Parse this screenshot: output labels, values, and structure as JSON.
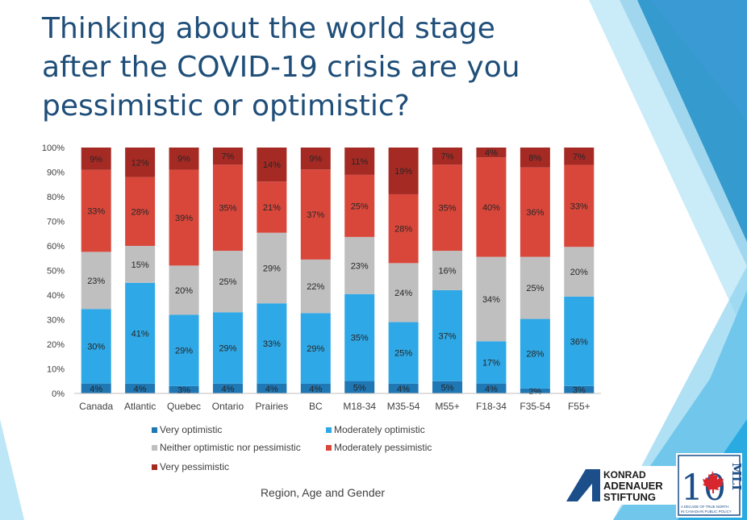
{
  "title_lines": [
    "Thinking about the world stage",
    "after the COVID-19 crisis are you",
    "pessimistic or optimistic?"
  ],
  "colors": {
    "title": "#1f4e79",
    "very_optimistic": "#1f77b4",
    "moderately_optimistic": "#2ea8e6",
    "neither": "#bfbfbf",
    "moderately_pessimistic": "#d9473b",
    "very_pessimistic": "#a52a24",
    "accent": "#29abe2"
  },
  "logos": {
    "kas": {
      "line1": "KONRAD",
      "line2": "ADENAUER",
      "line3": "STIFTUNG"
    },
    "mli": {
      "number": "10",
      "letters": "MLI",
      "tagline_1": "A DECADE OF TRUE NORTH",
      "tagline_2": "IN CANADIAN PUBLIC POLICY"
    }
  },
  "chart_data": {
    "type": "bar",
    "stacked": true,
    "percent": true,
    "categories": [
      "Canada",
      "Atlantic",
      "Quebec",
      "Ontario",
      "Prairies",
      "BC",
      "M18-34",
      "M35-54",
      "M55+",
      "F18-34",
      "F35-54",
      "F55+"
    ],
    "series": [
      {
        "name": "Very optimistic",
        "values": [
          4,
          4,
          3,
          4,
          4,
          4,
          5,
          4,
          5,
          4,
          2,
          3
        ],
        "labels": [
          "4%",
          "4%",
          "3%",
          "4%",
          "4%",
          "4%",
          "5%",
          "4%",
          "5%",
          "4%",
          "2%",
          "3%"
        ]
      },
      {
        "name": "Moderately optimistic",
        "values": [
          30,
          41,
          29,
          29,
          33,
          29,
          35,
          25,
          37,
          17,
          28,
          36
        ],
        "labels": [
          "30%",
          "41%",
          "29%",
          "29%",
          "33%",
          "29%",
          "35%",
          "25%",
          "37%",
          "17%",
          "28%",
          "36%"
        ]
      },
      {
        "name": "Neither optimistic nor pessimistic",
        "values": [
          23,
          15,
          20,
          25,
          29,
          22,
          23,
          24,
          16,
          34,
          25,
          20
        ],
        "labels": [
          "23%",
          "15%",
          "20%",
          "25%",
          "29%",
          "22%",
          "23%",
          "24%",
          "16%",
          "34%",
          "25%",
          "20%"
        ]
      },
      {
        "name": "Moderately pessimistic",
        "values": [
          33,
          28,
          39,
          35,
          21,
          37,
          25,
          28,
          35,
          40,
          36,
          33
        ],
        "labels": [
          "33%",
          "28%",
          "39%",
          "35%",
          "21%",
          "37%",
          "25%",
          "28%",
          "35%",
          "40%",
          "36%",
          "33%"
        ]
      },
      {
        "name": "Very pessimistic",
        "values": [
          9,
          12,
          9,
          7,
          14,
          9,
          11,
          19,
          7,
          4,
          8,
          7
        ],
        "labels": [
          "9%",
          "12%",
          "9%",
          "7%",
          "14%",
          "9%",
          "11%",
          "19%",
          "7%",
          "4%",
          "8%",
          "7%"
        ]
      }
    ],
    "yticks": [
      "0%",
      "10%",
      "20%",
      "30%",
      "40%",
      "50%",
      "60%",
      "70%",
      "80%",
      "90%",
      "100%"
    ],
    "ylim": [
      0,
      100
    ],
    "xlabel": "Region, Age and Gender",
    "grid": false,
    "legend_position": "bottom"
  }
}
